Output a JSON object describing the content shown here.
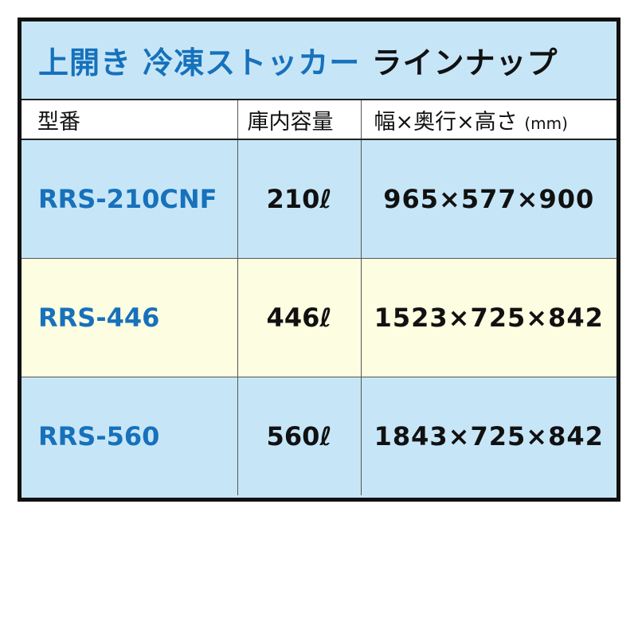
{
  "title": {
    "part_blue": "上開き 冷凍ストッカー",
    "part_black": "ラインナップ"
  },
  "headers": {
    "model": "型番",
    "capacity": "庫内容量",
    "dimensions": "幅×奥行×高さ",
    "dimensions_unit": "(mm)"
  },
  "rows": [
    {
      "model": "RRS-210CNF",
      "capacity": "210ℓ",
      "dimensions": "965×577×900"
    },
    {
      "model": "RRS-446",
      "capacity": "446ℓ",
      "dimensions": "1523×725×842"
    },
    {
      "model": "RRS-560",
      "capacity": "560ℓ",
      "dimensions": "1843×725×842"
    }
  ],
  "colors": {
    "accent_blue": "#1771bb",
    "row_blue": "#c6e6f8",
    "row_yellow": "#fdfde1",
    "border": "#111111"
  }
}
